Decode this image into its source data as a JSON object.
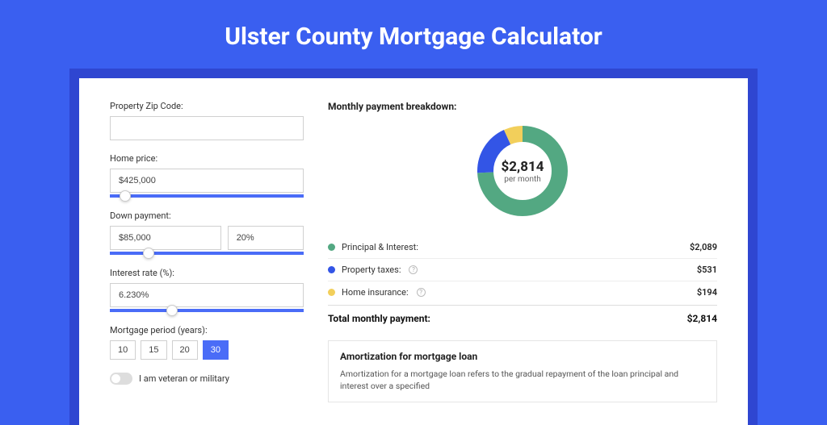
{
  "page_title": "Ulster County Mortgage Calculator",
  "colors": {
    "page_bg": "#3a5ff0",
    "outer_card_bg": "#2f46d1",
    "accent": "#4a6cf7",
    "principal": "#53a882",
    "taxes": "#3355e6",
    "insurance": "#f2cf5b"
  },
  "form": {
    "zip": {
      "label": "Property Zip Code:",
      "value": ""
    },
    "home_price": {
      "label": "Home price:",
      "value": "$425,000",
      "slider_pct": 8
    },
    "down_payment": {
      "label": "Down payment:",
      "value": "$85,000",
      "pct": "20%",
      "slider_pct": 20
    },
    "interest": {
      "label": "Interest rate (%):",
      "value": "6.230%",
      "slider_pct": 32
    },
    "period": {
      "label": "Mortgage period (years):",
      "options": [
        "10",
        "15",
        "20",
        "30"
      ],
      "selected": "30"
    },
    "veteran": {
      "label": "I am veteran or military",
      "checked": false
    }
  },
  "breakdown": {
    "title": "Monthly payment breakdown:",
    "total_label": "per month",
    "total": "$2,814",
    "items": [
      {
        "key": "pi",
        "label": "Principal & Interest:",
        "value": "$2,089",
        "amount": 2089,
        "help": false
      },
      {
        "key": "tax",
        "label": "Property taxes:",
        "value": "$531",
        "amount": 531,
        "help": true
      },
      {
        "key": "ins",
        "label": "Home insurance:",
        "value": "$194",
        "amount": 194,
        "help": true
      }
    ],
    "total_row": {
      "label": "Total monthly payment:",
      "value": "$2,814"
    },
    "donut": {
      "circumference": 289,
      "stroke_width": 20,
      "slices": [
        {
          "color_key": "principal",
          "fraction": 0.742
        },
        {
          "color_key": "taxes",
          "fraction": 0.189
        },
        {
          "color_key": "insurance",
          "fraction": 0.069
        }
      ]
    }
  },
  "amortization": {
    "title": "Amortization for mortgage loan",
    "text": "Amortization for a mortgage loan refers to the gradual repayment of the loan principal and interest over a specified"
  }
}
